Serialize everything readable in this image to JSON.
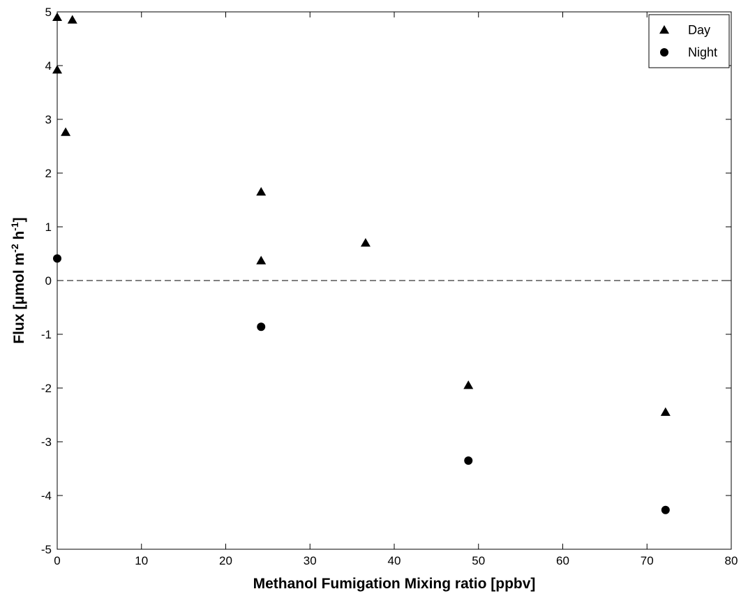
{
  "chart_data": {
    "type": "scatter",
    "title": "",
    "xlabel": "Methanol Fumigation Mixing ratio [ppbv]",
    "ylabel_parts": [
      "Flux [",
      "μ",
      "mol m",
      "-2",
      " h",
      "-1",
      "]"
    ],
    "xlim": [
      0,
      80
    ],
    "ylim": [
      -5,
      5
    ],
    "xticks": [
      0,
      10,
      20,
      30,
      40,
      50,
      60,
      70,
      80
    ],
    "yticks": [
      -5,
      -4,
      -3,
      -2,
      -1,
      0,
      1,
      2,
      3,
      4,
      5
    ],
    "reference_line": {
      "y": 0,
      "style": "dashed"
    },
    "legend_position": "top-right",
    "series": [
      {
        "name": "Day",
        "marker": "triangle",
        "points": [
          {
            "x": 0.0,
            "y": 4.9
          },
          {
            "x": 1.8,
            "y": 4.85
          },
          {
            "x": 0.0,
            "y": 3.92
          },
          {
            "x": 1.0,
            "y": 2.76
          },
          {
            "x": 24.2,
            "y": 1.65
          },
          {
            "x": 24.2,
            "y": 0.37
          },
          {
            "x": 36.6,
            "y": 0.7
          },
          {
            "x": 48.8,
            "y": -1.95
          },
          {
            "x": 72.2,
            "y": -2.45
          }
        ]
      },
      {
        "name": "Night",
        "marker": "circle",
        "points": [
          {
            "x": 0.0,
            "y": 0.41
          },
          {
            "x": 24.2,
            "y": -0.86
          },
          {
            "x": 48.8,
            "y": -3.35
          },
          {
            "x": 72.2,
            "y": -4.27
          }
        ]
      }
    ]
  }
}
